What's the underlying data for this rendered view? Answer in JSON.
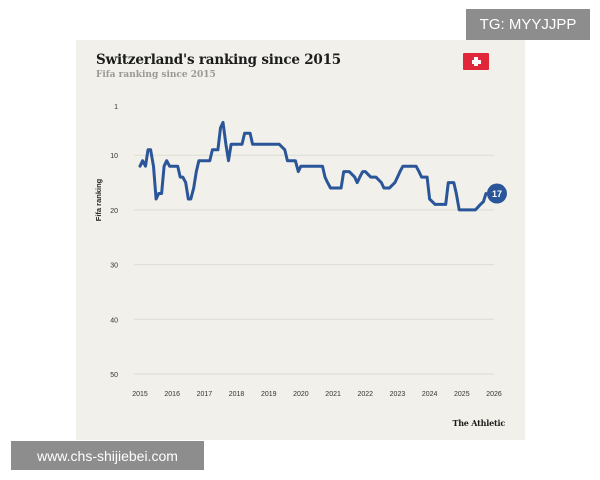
{
  "header": {
    "title": "Switzerland's ranking since 2015",
    "subtitle": "Fifa ranking since 2015"
  },
  "brand": "The Athletic",
  "watermarks": {
    "top_right": "TG: MYYJJPP",
    "bottom_left": "www.chs-shijiebei.com"
  },
  "colors": {
    "background": "#f1f0ea",
    "line": "#2a5699",
    "gridline": "#dcdbd4",
    "flag_red": "#e0273a",
    "watermark": "#8d8d8d"
  },
  "chart_data": {
    "type": "line",
    "title": "Switzerland's ranking since 2015",
    "subtitle": "Fifa ranking since 2015",
    "ylabel": "Fifa ranking",
    "xlabel": "",
    "y_inverted": true,
    "ylim": [
      1,
      50
    ],
    "yticks": [
      1,
      10,
      20,
      30,
      40,
      50
    ],
    "xlim": [
      2015,
      2026
    ],
    "xticks": [
      2015,
      2016,
      2017,
      2018,
      2019,
      2020,
      2021,
      2022,
      2023,
      2024,
      2025,
      2026
    ],
    "grid": "horizontal",
    "legend": "none",
    "end_label": "17",
    "series": [
      {
        "values": [
          [
            2015.0,
            12
          ],
          [
            2015.08,
            11
          ],
          [
            2015.17,
            12
          ],
          [
            2015.25,
            9
          ],
          [
            2015.33,
            9
          ],
          [
            2015.42,
            12
          ],
          [
            2015.5,
            18
          ],
          [
            2015.58,
            17
          ],
          [
            2015.67,
            17
          ],
          [
            2015.75,
            12
          ],
          [
            2015.83,
            11
          ],
          [
            2015.92,
            12
          ],
          [
            2016.0,
            12
          ],
          [
            2016.17,
            12
          ],
          [
            2016.25,
            14
          ],
          [
            2016.33,
            14
          ],
          [
            2016.42,
            15
          ],
          [
            2016.5,
            18
          ],
          [
            2016.58,
            18
          ],
          [
            2016.67,
            16
          ],
          [
            2016.75,
            13
          ],
          [
            2016.83,
            11
          ],
          [
            2016.92,
            11
          ],
          [
            2017.0,
            11
          ],
          [
            2017.17,
            11
          ],
          [
            2017.25,
            9
          ],
          [
            2017.33,
            9
          ],
          [
            2017.42,
            9
          ],
          [
            2017.5,
            5
          ],
          [
            2017.58,
            4
          ],
          [
            2017.67,
            8
          ],
          [
            2017.75,
            11
          ],
          [
            2017.83,
            8
          ],
          [
            2017.92,
            8
          ],
          [
            2018.0,
            8
          ],
          [
            2018.17,
            8
          ],
          [
            2018.25,
            6
          ],
          [
            2018.42,
            6
          ],
          [
            2018.5,
            8
          ],
          [
            2018.67,
            8
          ],
          [
            2019.0,
            8
          ],
          [
            2019.33,
            8
          ],
          [
            2019.5,
            9
          ],
          [
            2019.58,
            11
          ],
          [
            2019.67,
            11
          ],
          [
            2019.83,
            11
          ],
          [
            2019.92,
            13
          ],
          [
            2020.0,
            12
          ],
          [
            2020.25,
            12
          ],
          [
            2020.5,
            12
          ],
          [
            2020.67,
            12
          ],
          [
            2020.75,
            14
          ],
          [
            2020.83,
            15
          ],
          [
            2020.92,
            16
          ],
          [
            2021.0,
            16
          ],
          [
            2021.17,
            16
          ],
          [
            2021.25,
            16
          ],
          [
            2021.33,
            13
          ],
          [
            2021.5,
            13
          ],
          [
            2021.67,
            14
          ],
          [
            2021.75,
            15
          ],
          [
            2021.83,
            14
          ],
          [
            2021.92,
            13
          ],
          [
            2022.0,
            13
          ],
          [
            2022.17,
            14
          ],
          [
            2022.33,
            14
          ],
          [
            2022.5,
            15
          ],
          [
            2022.58,
            16
          ],
          [
            2022.75,
            16
          ],
          [
            2022.92,
            15
          ],
          [
            2023.0,
            14
          ],
          [
            2023.08,
            13
          ],
          [
            2023.17,
            12
          ],
          [
            2023.33,
            12
          ],
          [
            2023.5,
            12
          ],
          [
            2023.58,
            12
          ],
          [
            2023.67,
            13
          ],
          [
            2023.75,
            14
          ],
          [
            2023.92,
            14
          ],
          [
            2024.0,
            18
          ],
          [
            2024.17,
            19
          ],
          [
            2024.33,
            19
          ],
          [
            2024.5,
            19
          ],
          [
            2024.58,
            15
          ],
          [
            2024.75,
            15
          ],
          [
            2024.83,
            17
          ],
          [
            2024.92,
            20
          ],
          [
            2025.0,
            20
          ],
          [
            2025.25,
            20
          ],
          [
            2025.33,
            20
          ],
          [
            2025.42,
            20
          ],
          [
            2025.5,
            19.5
          ],
          [
            2025.58,
            19
          ],
          [
            2025.67,
            18.5
          ],
          [
            2025.75,
            17
          ]
        ]
      }
    ]
  }
}
